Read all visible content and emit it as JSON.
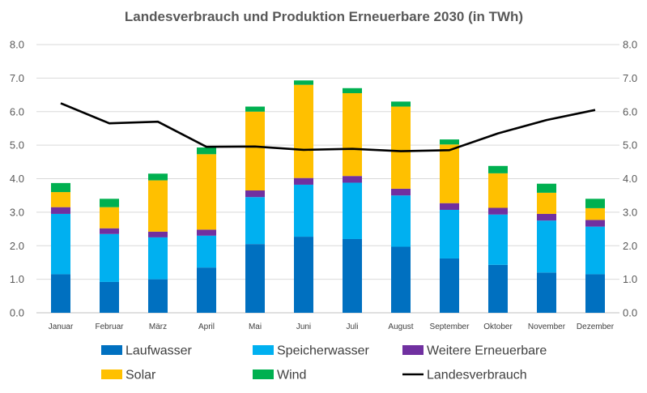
{
  "chart_data": {
    "type": "bar",
    "stacked": true,
    "title": "Landesverbrauch und Produktion Erneuerbare 2030 (in TWh)",
    "categories": [
      "Januar",
      "Februar",
      "März",
      "April",
      "Mai",
      "Juni",
      "Juli",
      "August",
      "September",
      "Oktober",
      "November",
      "Dezember"
    ],
    "ylim": [
      0,
      8
    ],
    "yticks": [
      "0.0",
      "1.0",
      "2.0",
      "3.0",
      "4.0",
      "5.0",
      "6.0",
      "7.0",
      "8.0"
    ],
    "secondary_yticks": [
      "0.0",
      "1.0",
      "2.0",
      "3.0",
      "4.0",
      "5.0",
      "6.0",
      "7.0",
      "8.0"
    ],
    "grid": true,
    "legend_position": "bottom",
    "series": [
      {
        "name": "Laufwasser",
        "color": "#0070C0",
        "kind": "bar",
        "values": [
          1.15,
          0.92,
          1.0,
          1.35,
          2.05,
          2.27,
          2.2,
          1.97,
          1.62,
          1.43,
          1.2,
          1.15
        ]
      },
      {
        "name": "Speicherwasser",
        "color": "#00B0F0",
        "kind": "bar",
        "values": [
          1.8,
          1.43,
          1.25,
          0.95,
          1.4,
          1.55,
          1.68,
          1.53,
          1.45,
          1.5,
          1.55,
          1.42
        ]
      },
      {
        "name": "Weitere Erneuerbare",
        "color": "#7030A0",
        "kind": "bar",
        "values": [
          0.2,
          0.17,
          0.17,
          0.18,
          0.2,
          0.2,
          0.2,
          0.2,
          0.2,
          0.2,
          0.2,
          0.2
        ]
      },
      {
        "name": "Solar",
        "color": "#FFC000",
        "kind": "bar",
        "values": [
          0.45,
          0.63,
          1.53,
          2.25,
          2.35,
          2.78,
          2.47,
          2.45,
          1.75,
          1.03,
          0.63,
          0.35
        ]
      },
      {
        "name": "Wind",
        "color": "#00B050",
        "kind": "bar",
        "values": [
          0.27,
          0.25,
          0.2,
          0.2,
          0.15,
          0.13,
          0.15,
          0.15,
          0.15,
          0.22,
          0.27,
          0.28
        ]
      },
      {
        "name": "Landesverbrauch",
        "color": "#000000",
        "kind": "line",
        "values": [
          6.25,
          5.65,
          5.7,
          4.95,
          4.96,
          4.86,
          4.89,
          4.82,
          4.85,
          5.35,
          5.75,
          6.05
        ]
      }
    ]
  }
}
